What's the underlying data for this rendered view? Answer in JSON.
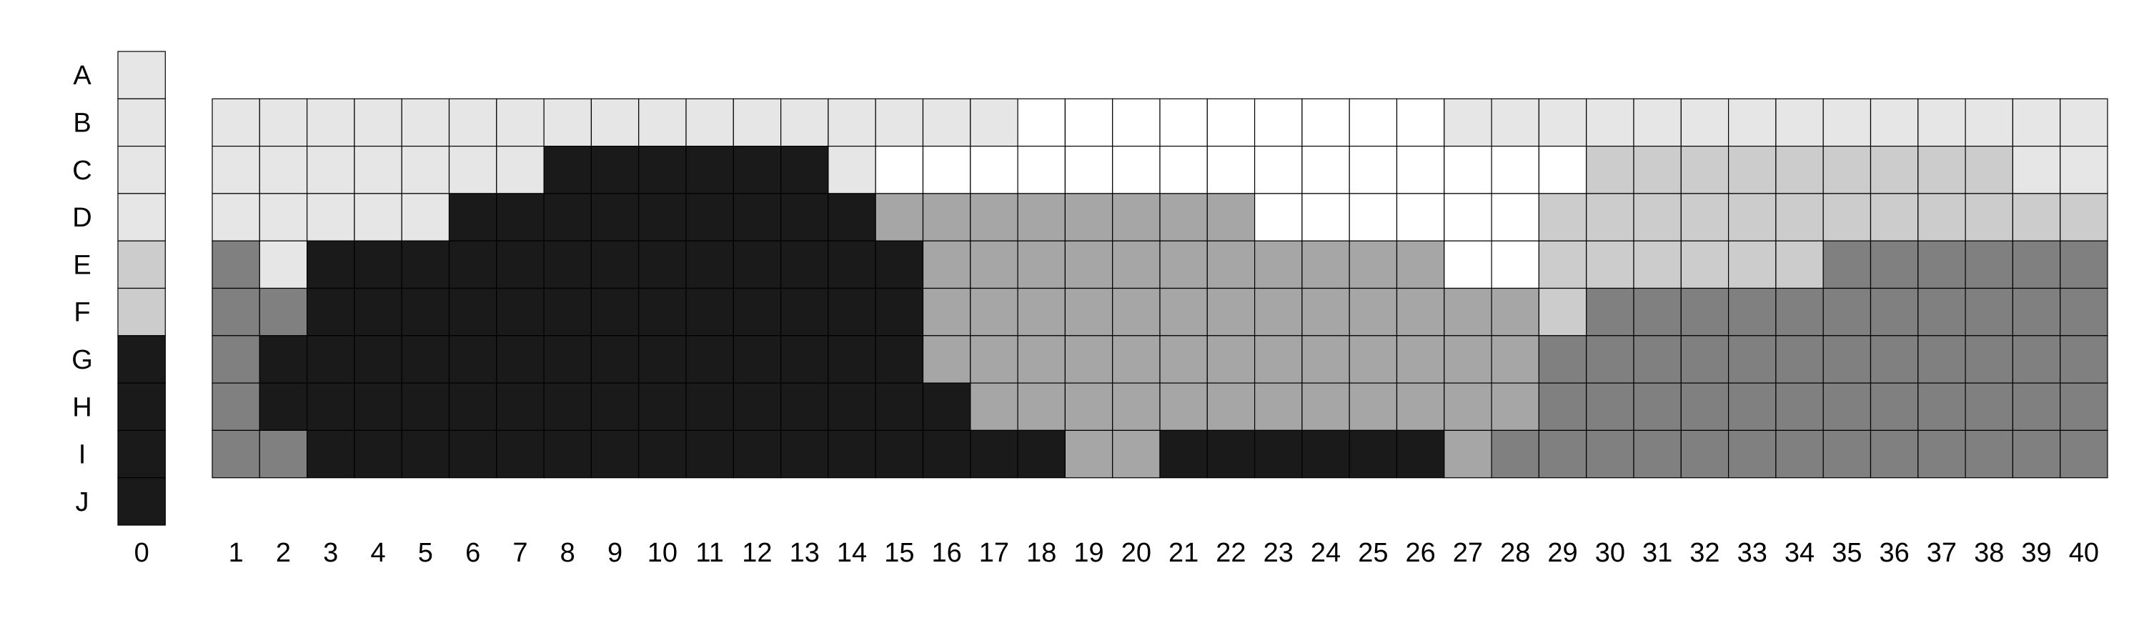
{
  "chart_data": {
    "type": "heatmap",
    "title": "",
    "xlabel": "",
    "ylabel": "",
    "rows": [
      "A",
      "B",
      "C",
      "D",
      "E",
      "F",
      "G",
      "H",
      "I",
      "J"
    ],
    "columns": [
      1,
      2,
      3,
      4,
      5,
      6,
      7,
      8,
      9,
      10,
      11,
      12,
      13,
      14,
      15,
      16,
      17,
      18,
      19,
      20,
      21,
      22,
      23,
      24,
      25,
      26,
      27,
      28,
      29,
      30,
      31,
      32,
      33,
      34,
      35,
      36,
      37,
      38,
      39,
      40
    ],
    "palette": {
      "0": "#ffffff",
      "1": "#e6e6e6",
      "2": "#cccccc",
      "3": "#a6a6a6",
      "4": "#808080",
      "5": "#1a1a1a"
    },
    "column_0": {
      "label": "0",
      "values": [
        1,
        1,
        1,
        1,
        2,
        2,
        5,
        5,
        5,
        5
      ]
    },
    "grid_rows": [
      "B",
      "C",
      "D",
      "E",
      "F",
      "G",
      "H",
      "I"
    ],
    "grid": [
      [
        1,
        1,
        1,
        1,
        1,
        1,
        1,
        1,
        1,
        1,
        1,
        1,
        1,
        1,
        1,
        1,
        1,
        0,
        0,
        0,
        0,
        0,
        0,
        0,
        0,
        0,
        1,
        1,
        1,
        1,
        1,
        1,
        1,
        1,
        1,
        1,
        1,
        1,
        1,
        1
      ],
      [
        1,
        1,
        1,
        1,
        1,
        1,
        1,
        5,
        5,
        5,
        5,
        5,
        5,
        1,
        0,
        0,
        0,
        0,
        0,
        0,
        0,
        0,
        0,
        0,
        0,
        0,
        0,
        0,
        0,
        2,
        2,
        2,
        2,
        2,
        2,
        2,
        2,
        2,
        1,
        1
      ],
      [
        1,
        1,
        1,
        1,
        1,
        5,
        5,
        5,
        5,
        5,
        5,
        5,
        5,
        5,
        3,
        3,
        3,
        3,
        3,
        3,
        3,
        3,
        0,
        0,
        0,
        0,
        0,
        0,
        2,
        2,
        2,
        2,
        2,
        2,
        2,
        2,
        2,
        2,
        2,
        2
      ],
      [
        4,
        1,
        5,
        5,
        5,
        5,
        5,
        5,
        5,
        5,
        5,
        5,
        5,
        5,
        5,
        3,
        3,
        3,
        3,
        3,
        3,
        3,
        3,
        3,
        3,
        3,
        0,
        0,
        2,
        2,
        2,
        2,
        2,
        2,
        4,
        4,
        4,
        4,
        4,
        4
      ],
      [
        4,
        4,
        5,
        5,
        5,
        5,
        5,
        5,
        5,
        5,
        5,
        5,
        5,
        5,
        5,
        3,
        3,
        3,
        3,
        3,
        3,
        3,
        3,
        3,
        3,
        3,
        3,
        3,
        2,
        4,
        4,
        4,
        4,
        4,
        4,
        4,
        4,
        4,
        4,
        4
      ],
      [
        4,
        5,
        5,
        5,
        5,
        5,
        5,
        5,
        5,
        5,
        5,
        5,
        5,
        5,
        5,
        3,
        3,
        3,
        3,
        3,
        3,
        3,
        3,
        3,
        3,
        3,
        3,
        3,
        4,
        4,
        4,
        4,
        4,
        4,
        4,
        4,
        4,
        4,
        4,
        4
      ],
      [
        4,
        5,
        5,
        5,
        5,
        5,
        5,
        5,
        5,
        5,
        5,
        5,
        5,
        5,
        5,
        5,
        3,
        3,
        3,
        3,
        3,
        3,
        3,
        3,
        3,
        3,
        3,
        3,
        4,
        4,
        4,
        4,
        4,
        4,
        4,
        4,
        4,
        4,
        4,
        4
      ],
      [
        4,
        4,
        5,
        5,
        5,
        5,
        5,
        5,
        5,
        5,
        5,
        5,
        5,
        5,
        5,
        5,
        5,
        5,
        3,
        3,
        5,
        5,
        5,
        5,
        5,
        5,
        3,
        4,
        4,
        4,
        4,
        4,
        4,
        4,
        4,
        4,
        4,
        4,
        4,
        4
      ]
    ]
  }
}
